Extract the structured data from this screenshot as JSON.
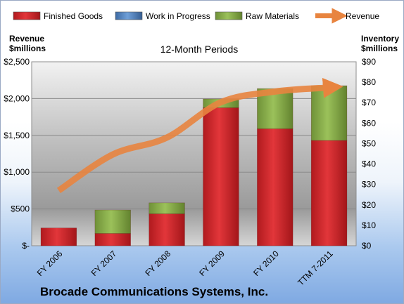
{
  "chart_data": {
    "type": "bar",
    "stacked": true,
    "subtitle": "12-Month Periods",
    "footer": "Brocade Communications Systems, Inc.",
    "categories": [
      "FY 2006",
      "FY 2007",
      "FY 2008",
      "FY 2009",
      "FY 2010",
      "TTM 7-2011"
    ],
    "ylabel_left": [
      "Revenue",
      "$millions"
    ],
    "ylabel_right": [
      "Inventory",
      "$millions"
    ],
    "left_axis": {
      "min": 0,
      "max": 2500,
      "ticks": [
        "$-",
        "$500",
        "$1,000",
        "$1,500",
        "$2,000",
        "$2,500"
      ]
    },
    "right_axis": {
      "min": 0,
      "max": 90,
      "ticks": [
        "$0",
        "$10",
        "$20",
        "$30",
        "$40",
        "$50",
        "$60",
        "$70",
        "$80",
        "$90"
      ]
    },
    "series": [
      {
        "name": "Finished Goods",
        "axis": "right",
        "kind": "bar",
        "color": "#d9262b",
        "values": [
          8.7,
          6.0,
          15.6,
          67.5,
          57.2,
          51.5
        ]
      },
      {
        "name": "Work in Progress",
        "axis": "right",
        "kind": "bar",
        "color": "#4f81bd",
        "values": [
          0,
          0,
          0,
          0,
          0,
          0
        ]
      },
      {
        "name": "Raw Materials",
        "axis": "right",
        "kind": "bar",
        "color": "#8db04a",
        "values": [
          0,
          11.5,
          5.4,
          4.3,
          19.7,
          26.8
        ]
      },
      {
        "name": "Revenue",
        "axis": "left",
        "kind": "line",
        "color": "#e8843f",
        "values": [
          750,
          1240,
          1470,
          1950,
          2095,
          2150
        ]
      }
    ],
    "legend": "top",
    "grid": true
  }
}
